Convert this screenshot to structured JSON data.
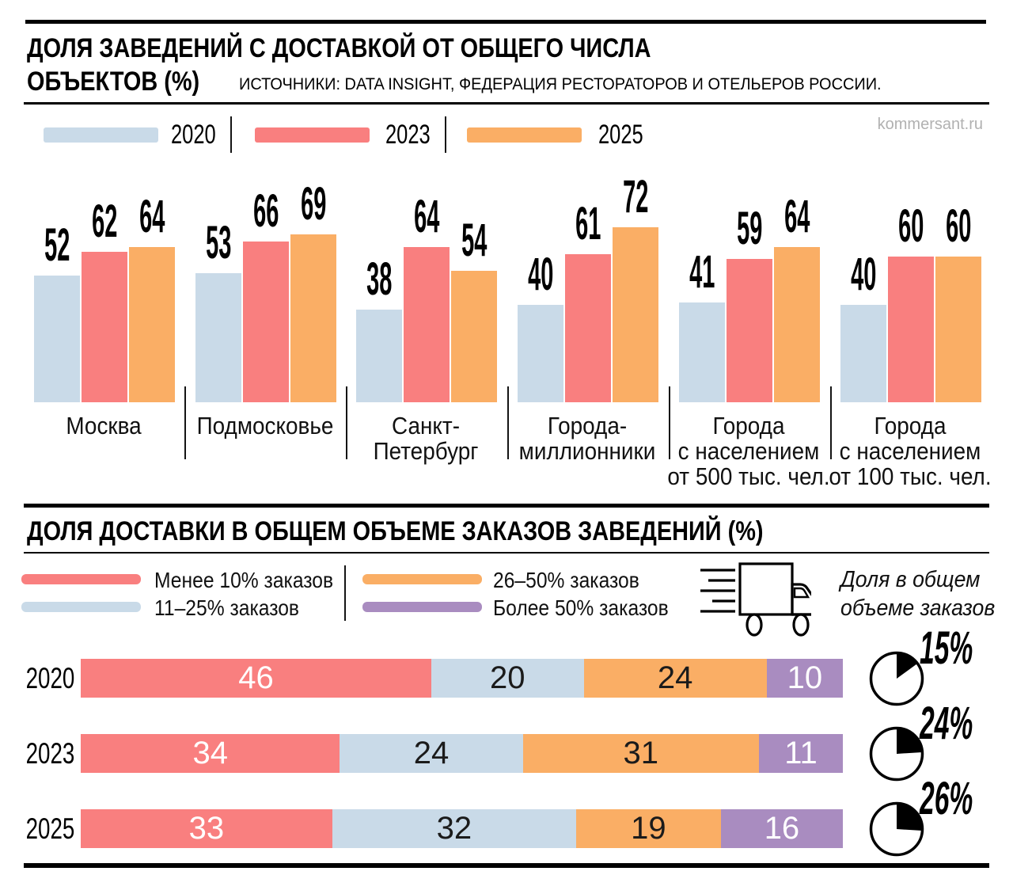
{
  "brand": "kommersant.ru",
  "header": {
    "title_line1": "ДОЛЯ ЗАВЕДЕНИЙ С ДОСТАВКОЙ ОТ ОБЩЕГО ЧИСЛА",
    "title_line2": "ОБЪЕКТОВ (%)",
    "source": "ИСТОЧНИКИ: DATA INSIGHT, ФЕДЕРАЦИЯ РЕСТОРАТОРОВ И ОТЕЛЬЕРОВ РОССИИ."
  },
  "top_legend": [
    {
      "label": "2020",
      "color": "#C9DAE8"
    },
    {
      "label": "2023",
      "color": "#F97F7F"
    },
    {
      "label": "2025",
      "color": "#FAAE65"
    }
  ],
  "section2": {
    "title": "ДОЛЯ ДОСТАВКИ В ОБЩЕМ ОБЪЕМЕ ЗАКАЗОВ ЗАВЕДЕНИЙ (%)"
  },
  "bottom_legend": [
    {
      "label": "Менее 10% заказов",
      "color": "#F97F7F"
    },
    {
      "label": "11–25% заказов",
      "color": "#C9DAE8"
    },
    {
      "label": "26–50% заказов",
      "color": "#FAAE65"
    },
    {
      "label": "Более 50% заказов",
      "color": "#A98CC0"
    }
  ],
  "note": {
    "line1": "Доля в общем",
    "line2": "объеме заказов"
  },
  "icons": {
    "truck": "truck-icon",
    "pie": "pie-share-icon"
  },
  "chart_data": [
    {
      "type": "bar",
      "title": "ДОЛЯ ЗАВЕДЕНИЙ С ДОСТАВКОЙ ОТ ОБЩЕГО ЧИСЛА ОБЪЕКТОВ (%)",
      "categories": [
        "Москва",
        "Подмосковье",
        "Санкт-Петербург",
        "Города-миллионники",
        "Города с населением от 500 тыс. чел.",
        "Города с населением от 100 тыс. чел."
      ],
      "categories_lines": [
        [
          "Москва"
        ],
        [
          "Подмосковье"
        ],
        [
          "Санкт-",
          "Петербург"
        ],
        [
          "Города-",
          "миллионники"
        ],
        [
          "Города",
          "с населением",
          "от 500 тыс. чел."
        ],
        [
          "Города",
          "с населением",
          "от 100 тыс. чел."
        ]
      ],
      "series": [
        {
          "name": "2020",
          "values": [
            52,
            53,
            38,
            40,
            41,
            40
          ]
        },
        {
          "name": "2023",
          "values": [
            62,
            66,
            64,
            61,
            59,
            60
          ]
        },
        {
          "name": "2025",
          "values": [
            64,
            69,
            54,
            72,
            64,
            60
          ]
        }
      ],
      "ylim": [
        0,
        80
      ],
      "grid": false,
      "legend_position": "top"
    },
    {
      "type": "bar-stacked-horizontal",
      "title": "ДОЛЯ ДОСТАВКИ В ОБЩЕМ ОБЪЕМЕ ЗАКАЗОВ ЗАВЕДЕНИЙ (%)",
      "categories": [
        "2020",
        "2023",
        "2025"
      ],
      "series": [
        {
          "name": "Менее 10% заказов",
          "values": [
            46,
            34,
            33
          ]
        },
        {
          "name": "11–25% заказов",
          "values": [
            20,
            24,
            32
          ]
        },
        {
          "name": "26–50% заказов",
          "values": [
            24,
            31,
            19
          ]
        },
        {
          "name": "Более 50% заказов",
          "values": [
            10,
            11,
            16
          ]
        }
      ],
      "xlim": [
        0,
        100
      ],
      "share_in_total_orders": [
        {
          "year": "2020",
          "percent": 15
        },
        {
          "year": "2023",
          "percent": 24
        },
        {
          "year": "2025",
          "percent": 26
        }
      ]
    }
  ]
}
